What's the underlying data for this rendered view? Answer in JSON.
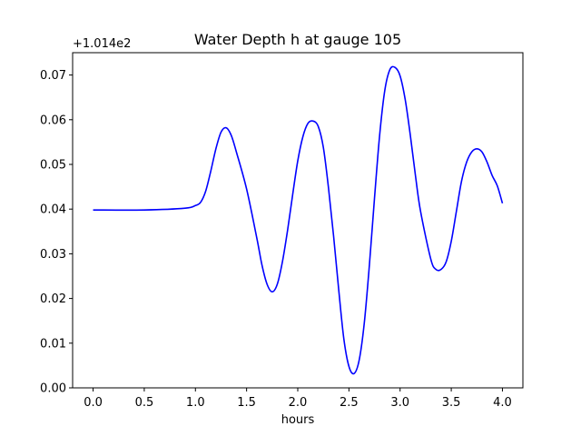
{
  "chart_data": {
    "type": "line",
    "title": "Water Depth h at gauge 105",
    "xlabel": "hours",
    "ylabel": "",
    "offset_label": "+1.014e2",
    "xlim": [
      -0.2,
      4.2
    ],
    "ylim": [
      0.0,
      0.075
    ],
    "x_ticks": [
      0.0,
      0.5,
      1.0,
      1.5,
      2.0,
      2.5,
      3.0,
      3.5,
      4.0
    ],
    "x_tick_labels": [
      "0.0",
      "0.5",
      "1.0",
      "1.5",
      "2.0",
      "2.5",
      "3.0",
      "3.5",
      "4.0"
    ],
    "y_ticks": [
      0.0,
      0.01,
      0.02,
      0.03,
      0.04,
      0.05,
      0.06,
      0.07
    ],
    "y_tick_labels": [
      "0.00",
      "0.01",
      "0.02",
      "0.03",
      "0.04",
      "0.05",
      "0.06",
      "0.07"
    ],
    "grid": false,
    "series": [
      {
        "color": "#0000ff",
        "x": [
          0.0,
          0.5,
          0.9,
          1.0,
          1.05,
          1.1,
          1.15,
          1.2,
          1.25,
          1.3,
          1.35,
          1.4,
          1.5,
          1.6,
          1.65,
          1.7,
          1.75,
          1.8,
          1.85,
          1.9,
          1.95,
          2.0,
          2.05,
          2.1,
          2.15,
          2.2,
          2.25,
          2.3,
          2.35,
          2.4,
          2.45,
          2.5,
          2.55,
          2.6,
          2.65,
          2.7,
          2.75,
          2.8,
          2.85,
          2.9,
          2.95,
          3.0,
          3.05,
          3.1,
          3.15,
          3.2,
          3.3,
          3.35,
          3.4,
          3.45,
          3.5,
          3.55,
          3.6,
          3.65,
          3.7,
          3.75,
          3.8,
          3.85,
          3.9,
          3.95,
          4.0
        ],
        "y": [
          0.0398,
          0.0398,
          0.0402,
          0.0408,
          0.0415,
          0.044,
          0.0485,
          0.0535,
          0.0572,
          0.0582,
          0.0565,
          0.0528,
          0.0445,
          0.0335,
          0.0275,
          0.0232,
          0.0215,
          0.0232,
          0.0282,
          0.0352,
          0.0432,
          0.0508,
          0.0562,
          0.0592,
          0.0597,
          0.0585,
          0.0538,
          0.0448,
          0.034,
          0.022,
          0.011,
          0.0048,
          0.0032,
          0.0062,
          0.0145,
          0.0275,
          0.0425,
          0.0565,
          0.0665,
          0.0712,
          0.0717,
          0.0698,
          0.0645,
          0.0565,
          0.0475,
          0.0395,
          0.0288,
          0.0265,
          0.0265,
          0.0282,
          0.0328,
          0.0395,
          0.0462,
          0.0505,
          0.0528,
          0.0535,
          0.0528,
          0.0505,
          0.0475,
          0.0452,
          0.0413
        ]
      }
    ]
  }
}
